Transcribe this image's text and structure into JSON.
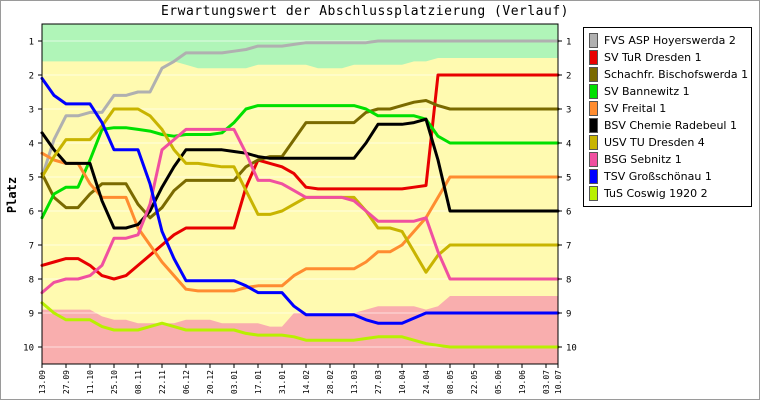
{
  "chart_data": {
    "type": "line",
    "title": "Erwartungswert der Abschlussplatzierung (Verlauf)",
    "ylabel": "Platz",
    "xlabel": "",
    "ylim": [
      0.5,
      10.5
    ],
    "y_ticks": [
      1,
      2,
      3,
      4,
      5,
      6,
      7,
      8,
      9,
      10
    ],
    "y_axis_inverted": true,
    "grid": true,
    "legend_position": "right",
    "categories": [
      "13.09",
      "20.09",
      "27.09",
      "04.10",
      "11.10",
      "18.10",
      "25.10",
      "01.11",
      "08.11",
      "15.11",
      "22.11",
      "29.11",
      "06.12",
      "13.12",
      "20.12",
      "27.12",
      "03.01",
      "10.01",
      "17.01",
      "24.01",
      "31.01",
      "07.02",
      "14.02",
      "21.02",
      "28.02",
      "06.03",
      "13.03",
      "20.03",
      "27.03",
      "03.04",
      "10.04",
      "17.04",
      "24.04",
      "01.05",
      "08.05",
      "15.05",
      "22.05",
      "29.05",
      "05.06",
      "12.06",
      "19.06",
      "26.06",
      "03.07",
      "10.07"
    ],
    "x_tick_labels": [
      "13.09",
      "27.09",
      "11.10",
      "25.10",
      "08.11",
      "22.11",
      "06.12",
      "20.12",
      "03.01",
      "17.01",
      "31.01",
      "14.02",
      "28.02",
      "13.03",
      "27.03",
      "10.04",
      "24.04",
      "08.05",
      "22.05",
      "05.06",
      "19.06",
      "03.07",
      "10.07"
    ],
    "zones": [
      {
        "name": "promotion",
        "color": "#b0f5b8",
        "upper_edge": [
          1.6,
          1.6,
          1.6,
          1.6,
          1.6,
          1.6,
          1.6,
          1.6,
          1.6,
          1.6,
          1.6,
          1.6,
          1.7,
          1.8,
          1.8,
          1.8,
          1.8,
          1.8,
          1.7,
          1.7,
          1.7,
          1.7,
          1.7,
          1.8,
          1.8,
          1.8,
          1.7,
          1.7,
          1.7,
          1.7,
          1.7,
          1.6,
          1.6,
          1.5,
          1.5,
          1.5,
          1.5,
          1.5,
          1.5,
          1.5,
          1.5,
          1.5,
          1.5,
          1.5
        ]
      },
      {
        "name": "relegation",
        "color": "#f9aeae",
        "lower_edge": [
          8.9,
          8.9,
          8.9,
          8.9,
          8.9,
          9.1,
          9.2,
          9.2,
          9.3,
          9.3,
          9.3,
          9.3,
          9.2,
          9.2,
          9.2,
          9.3,
          9.3,
          9.3,
          9.3,
          9.4,
          9.4,
          9.0,
          9.0,
          9.0,
          9.0,
          9.0,
          9.0,
          8.9,
          8.8,
          8.8,
          8.8,
          8.8,
          8.9,
          8.8,
          8.5,
          8.5,
          8.5,
          8.5,
          8.5,
          8.5,
          8.5,
          8.5,
          8.5,
          8.5
        ]
      }
    ],
    "series": [
      {
        "name": "FVS ASP Hoyerswerda 2",
        "color": "#b0b0b0",
        "values": [
          5.0,
          3.9,
          3.2,
          3.2,
          3.1,
          3.1,
          2.6,
          2.6,
          2.5,
          2.5,
          1.8,
          1.6,
          1.35,
          1.35,
          1.35,
          1.35,
          1.3,
          1.25,
          1.15,
          1.15,
          1.15,
          1.1,
          1.05,
          1.05,
          1.05,
          1.05,
          1.05,
          1.05,
          1.0,
          1.0,
          1.0,
          1.0,
          1.0,
          1.0,
          1.0,
          1.0,
          1.0,
          1.0,
          1.0,
          1.0,
          1.0,
          1.0,
          1.0,
          1.0
        ]
      },
      {
        "name": "SV TuR Dresden 1",
        "color": "#e80000",
        "values": [
          7.6,
          7.5,
          7.4,
          7.4,
          7.6,
          7.9,
          8.0,
          7.9,
          7.6,
          7.3,
          7.0,
          6.7,
          6.5,
          6.5,
          6.5,
          6.5,
          6.5,
          5.3,
          4.5,
          4.6,
          4.7,
          4.9,
          5.3,
          5.35,
          5.35,
          5.35,
          5.35,
          5.35,
          5.35,
          5.35,
          5.35,
          5.3,
          5.25,
          2.0,
          2.0,
          2.0,
          2.0,
          2.0,
          2.0,
          2.0,
          2.0,
          2.0,
          2.0,
          2.0
        ]
      },
      {
        "name": "Schachfr. Bischofswerda 1",
        "color": "#7a6a00",
        "values": [
          4.9,
          5.6,
          5.9,
          5.9,
          5.5,
          5.2,
          5.2,
          5.2,
          5.8,
          6.2,
          5.9,
          5.4,
          5.1,
          5.1,
          5.1,
          5.1,
          5.1,
          4.7,
          4.5,
          4.4,
          4.4,
          3.9,
          3.4,
          3.4,
          3.4,
          3.4,
          3.4,
          3.1,
          3.0,
          3.0,
          2.9,
          2.8,
          2.75,
          2.9,
          3.0,
          3.0,
          3.0,
          3.0,
          3.0,
          3.0,
          3.0,
          3.0,
          3.0,
          3.0
        ]
      },
      {
        "name": "SV Bannewitz 1",
        "color": "#00e000",
        "values": [
          6.2,
          5.5,
          5.3,
          5.3,
          4.5,
          3.6,
          3.55,
          3.55,
          3.6,
          3.65,
          3.75,
          3.8,
          3.75,
          3.75,
          3.75,
          3.7,
          3.4,
          3.0,
          2.9,
          2.9,
          2.9,
          2.9,
          2.9,
          2.9,
          2.9,
          2.9,
          2.9,
          3.0,
          3.2,
          3.2,
          3.2,
          3.2,
          3.3,
          3.8,
          4.0,
          4.0,
          4.0,
          4.0,
          4.0,
          4.0,
          4.0,
          4.0,
          4.0,
          4.0
        ]
      },
      {
        "name": "SV Freital 1",
        "color": "#ff8c30",
        "values": [
          4.3,
          4.5,
          4.6,
          4.6,
          5.2,
          5.6,
          5.6,
          5.6,
          6.5,
          7.0,
          7.5,
          7.9,
          8.3,
          8.35,
          8.35,
          8.35,
          8.35,
          8.25,
          8.2,
          8.2,
          8.2,
          7.9,
          7.7,
          7.7,
          7.7,
          7.7,
          7.7,
          7.5,
          7.2,
          7.2,
          7.0,
          6.6,
          6.2,
          5.6,
          5.0,
          5.0,
          5.0,
          5.0,
          5.0,
          5.0,
          5.0,
          5.0,
          5.0,
          5.0
        ]
      },
      {
        "name": "BSV Chemie Radebeul 1",
        "color": "#000000",
        "values": [
          3.7,
          4.2,
          4.6,
          4.6,
          4.6,
          5.7,
          6.5,
          6.5,
          6.4,
          6.0,
          5.3,
          4.7,
          4.2,
          4.2,
          4.2,
          4.2,
          4.25,
          4.3,
          4.4,
          4.45,
          4.45,
          4.45,
          4.45,
          4.45,
          4.45,
          4.45,
          4.45,
          4.0,
          3.45,
          3.45,
          3.45,
          3.4,
          3.3,
          4.5,
          6.0,
          6.0,
          6.0,
          6.0,
          6.0,
          6.0,
          6.0,
          6.0,
          6.0,
          6.0
        ]
      },
      {
        "name": "USV TU Dresden 4",
        "color": "#c8b400",
        "values": [
          5.0,
          4.4,
          3.9,
          3.9,
          3.9,
          3.5,
          3.0,
          3.0,
          3.0,
          3.2,
          3.6,
          4.2,
          4.6,
          4.6,
          4.65,
          4.7,
          4.7,
          5.4,
          6.1,
          6.1,
          6.0,
          5.8,
          5.6,
          5.6,
          5.6,
          5.6,
          5.6,
          6.0,
          6.5,
          6.5,
          6.6,
          7.2,
          7.8,
          7.3,
          7.0,
          7.0,
          7.0,
          7.0,
          7.0,
          7.0,
          7.0,
          7.0,
          7.0,
          7.0
        ]
      },
      {
        "name": "BSG Sebnitz 1",
        "color": "#f050a0",
        "values": [
          8.4,
          8.1,
          8.0,
          8.0,
          7.9,
          7.6,
          6.8,
          6.8,
          6.7,
          5.8,
          4.2,
          3.9,
          3.6,
          3.6,
          3.6,
          3.6,
          3.6,
          4.3,
          5.1,
          5.1,
          5.2,
          5.4,
          5.6,
          5.6,
          5.6,
          5.6,
          5.7,
          6.0,
          6.3,
          6.3,
          6.3,
          6.3,
          6.2,
          7.2,
          8.0,
          8.0,
          8.0,
          8.0,
          8.0,
          8.0,
          8.0,
          8.0,
          8.0,
          8.0
        ]
      },
      {
        "name": "TSV Großschönau 1",
        "color": "#0000ff",
        "values": [
          2.1,
          2.6,
          2.85,
          2.85,
          2.85,
          3.4,
          4.2,
          4.2,
          4.2,
          5.2,
          6.6,
          7.4,
          8.05,
          8.05,
          8.05,
          8.05,
          8.05,
          8.2,
          8.4,
          8.4,
          8.4,
          8.8,
          9.05,
          9.05,
          9.05,
          9.05,
          9.05,
          9.2,
          9.3,
          9.3,
          9.3,
          9.15,
          9.0,
          9.0,
          9.0,
          9.0,
          9.0,
          9.0,
          9.0,
          9.0,
          9.0,
          9.0,
          9.0,
          9.0
        ]
      },
      {
        "name": "TuS Coswig 1920 2",
        "color": "#b8f000",
        "values": [
          8.7,
          9.0,
          9.2,
          9.2,
          9.2,
          9.4,
          9.5,
          9.5,
          9.5,
          9.4,
          9.3,
          9.4,
          9.5,
          9.5,
          9.5,
          9.5,
          9.5,
          9.6,
          9.65,
          9.65,
          9.65,
          9.7,
          9.8,
          9.8,
          9.8,
          9.8,
          9.8,
          9.75,
          9.7,
          9.7,
          9.7,
          9.8,
          9.9,
          9.95,
          10.0,
          10.0,
          10.0,
          10.0,
          10.0,
          10.0,
          10.0,
          10.0,
          10.0,
          10.0
        ]
      }
    ]
  }
}
